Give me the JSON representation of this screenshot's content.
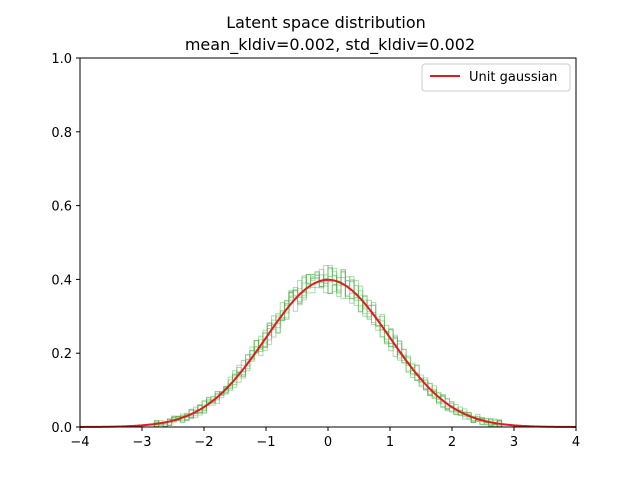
{
  "chart_data": {
    "type": "line",
    "title_lines": [
      "Latent space distribution",
      "mean_kldiv=0.002, std_kldiv=0.002"
    ],
    "xlabel": "",
    "ylabel": "",
    "xlim": [
      -4,
      4
    ],
    "ylim": [
      0,
      1
    ],
    "x_ticks": [
      -4,
      -3,
      -2,
      -1,
      0,
      1,
      2,
      3,
      4
    ],
    "x_tick_labels": [
      "−4",
      "−3",
      "−2",
      "−1",
      "0",
      "1",
      "2",
      "3",
      "4"
    ],
    "y_ticks": [
      0,
      0.2,
      0.4,
      0.6,
      0.8,
      1
    ],
    "y_tick_labels": [
      "0.0",
      "0.2",
      "0.4",
      "0.6",
      "0.8",
      "1.0"
    ],
    "grid": false,
    "legend": {
      "placement": "top-right",
      "entries": [
        "Unit gaussian"
      ]
    },
    "colors": {
      "curve": "#e41a1c",
      "histograms": "#4daf4a",
      "legend_line": "#e41a1c"
    },
    "series": [
      {
        "name": "Unit gaussian",
        "kind": "line",
        "mean": 0,
        "std": 1,
        "peak": 0.399
      },
      {
        "kind": "histogram-step",
        "count": 8,
        "range": [
          -2.8,
          2.8
        ],
        "bin_width": 0.07,
        "peak_max": 0.47
      }
    ]
  }
}
